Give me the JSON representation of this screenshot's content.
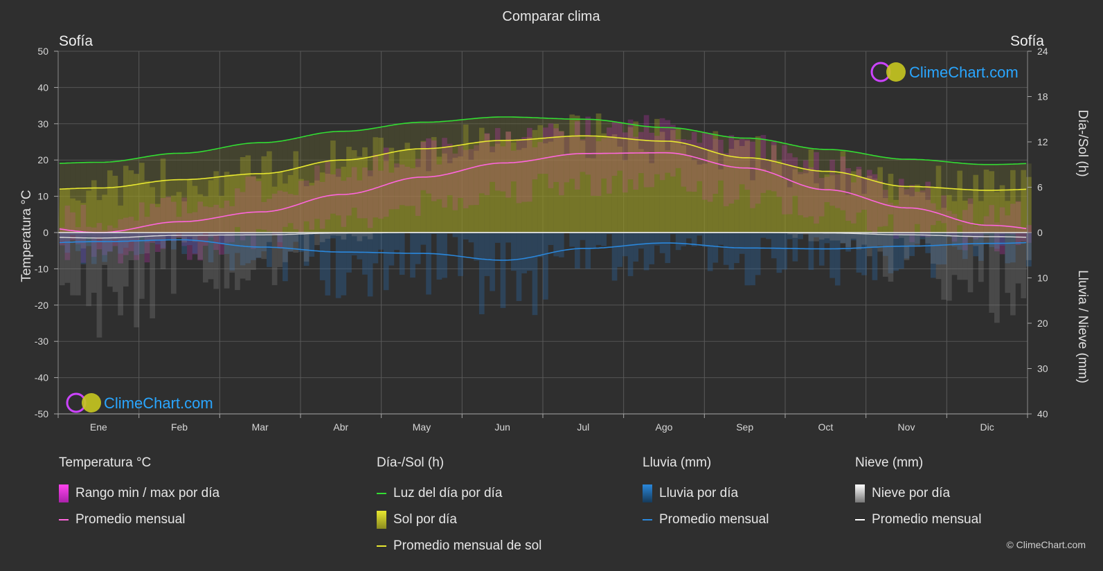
{
  "title": "Comparar clima",
  "city_left": "Sofía",
  "city_right": "Sofía",
  "brand": "ClimeChart.com",
  "copyright": "© ClimeChart.com",
  "axis_left_label": "Temperatura °C",
  "axis_right_top_label": "Día-/Sol (h)",
  "axis_right_bottom_label": "Lluvia / Nieve (mm)",
  "legend": {
    "temp": {
      "heading": "Temperatura °C",
      "range": "Rango min / max por día",
      "avg": "Promedio mensual"
    },
    "sun": {
      "heading": "Día-/Sol (h)",
      "daylight": "Luz del día por día",
      "sun": "Sol por día",
      "sun_avg": "Promedio mensual de sol"
    },
    "rain": {
      "heading": "Lluvia (mm)",
      "rain": "Lluvia por día",
      "avg": "Promedio mensual"
    },
    "snow": {
      "heading": "Nieve (mm)",
      "snow": "Nieve por día",
      "avg": "Promedio mensual"
    }
  },
  "colors": {
    "background": "#2f2f2f",
    "daylight": "#33dd33",
    "sun_avg": "#e8e830",
    "temp_avg": "#ff66dd",
    "temp_range": "#dd22cc",
    "sun_fill": "#a0a020",
    "rain": "#2a88dd",
    "snow": "#ffffff"
  },
  "chart_data": {
    "type": "line",
    "months": [
      "Ene",
      "Feb",
      "Mar",
      "Abr",
      "May",
      "Jun",
      "Jul",
      "Ago",
      "Sep",
      "Oct",
      "Nov",
      "Dic"
    ],
    "left_axis": {
      "label": "Temperatura °C",
      "ylim": [
        -50,
        50
      ],
      "ticks": [
        50,
        40,
        30,
        20,
        10,
        0,
        -10,
        -20,
        -30,
        -40,
        -50
      ]
    },
    "right_axis_top": {
      "label": "Día-/Sol (h)",
      "ylim": [
        0,
        24
      ],
      "ticks": [
        24,
        18,
        12,
        6,
        0
      ]
    },
    "right_axis_bottom": {
      "label": "Lluvia / Nieve (mm)",
      "ylim": [
        0,
        40
      ],
      "ticks": [
        0,
        10,
        20,
        30,
        40
      ]
    },
    "series": [
      {
        "name": "Luz del día por día",
        "unit": "h",
        "values": [
          9.3,
          10.5,
          11.9,
          13.4,
          14.6,
          15.3,
          15.0,
          13.9,
          12.5,
          11.0,
          9.7,
          9.0
        ]
      },
      {
        "name": "Promedio mensual de sol",
        "unit": "h",
        "values": [
          5.9,
          7.0,
          7.8,
          9.6,
          11.1,
          12.2,
          12.8,
          12.1,
          9.9,
          8.1,
          6.1,
          5.6
        ]
      },
      {
        "name": "Temperatura promedio mensual",
        "unit": "°C",
        "values": [
          0.0,
          3.0,
          5.7,
          10.5,
          15.3,
          19.2,
          21.8,
          22.0,
          17.8,
          11.8,
          6.8,
          2.0
        ]
      },
      {
        "name": "Promedio mensual lluvia",
        "unit": "mm",
        "values": [
          2.0,
          1.6,
          3.2,
          4.3,
          4.6,
          6.1,
          3.5,
          2.3,
          3.4,
          3.6,
          3.0,
          2.4
        ]
      },
      {
        "name": "Promedio mensual nieve",
        "unit": "mm",
        "values": [
          1.2,
          0.6,
          0.5,
          0.1,
          0.0,
          0.0,
          0.0,
          0.0,
          0.0,
          0.1,
          0.5,
          0.9
        ]
      }
    ],
    "temp_range": {
      "min": [
        -5,
        -4,
        -1,
        3,
        8,
        12,
        14,
        14,
        10,
        5,
        1,
        -3
      ],
      "max": [
        4,
        7,
        12,
        17,
        22,
        26,
        29,
        29,
        24,
        18,
        11,
        5
      ]
    },
    "sunshine_fill_hours": [
      5.9,
      7.0,
      7.8,
      9.6,
      11.1,
      12.2,
      12.8,
      12.1,
      9.9,
      8.1,
      6.1,
      5.6
    ]
  }
}
